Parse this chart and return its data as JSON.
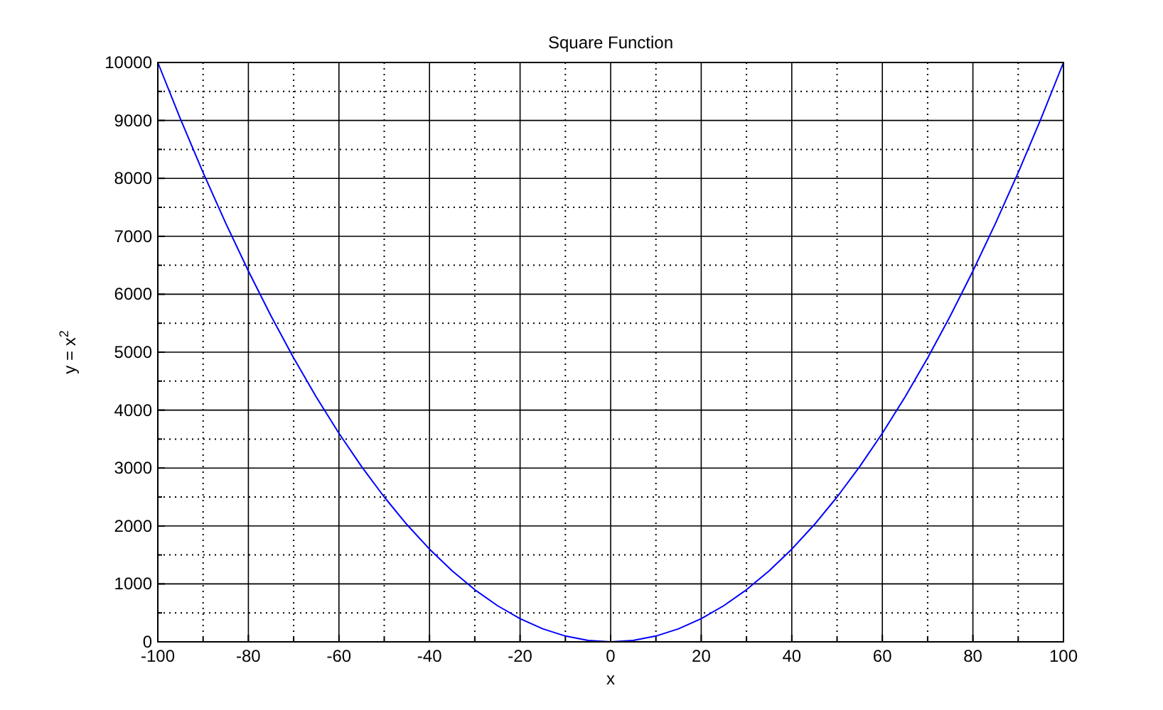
{
  "chart_data": {
    "type": "line",
    "title": "Square Function",
    "xlabel": "x",
    "ylabel": "y = x$^{2}$",
    "x": [
      -100,
      -95,
      -90,
      -85,
      -80,
      -75,
      -70,
      -65,
      -60,
      -55,
      -50,
      -45,
      -40,
      -35,
      -30,
      -25,
      -20,
      -15,
      -10,
      -5,
      0,
      5,
      10,
      15,
      20,
      25,
      30,
      35,
      40,
      45,
      50,
      55,
      60,
      65,
      70,
      75,
      80,
      85,
      90,
      95,
      100
    ],
    "series": [
      {
        "color": "#0000ff",
        "values": [
          10000,
          9025,
          8100,
          7225,
          6400,
          5625,
          4900,
          4225,
          3600,
          3025,
          2500,
          2025,
          1600,
          1225,
          900,
          625,
          400,
          225,
          100,
          25,
          0,
          25,
          100,
          225,
          400,
          625,
          900,
          1225,
          1600,
          2025,
          2500,
          3025,
          3600,
          4225,
          4900,
          5625,
          6400,
          7225,
          8100,
          9025,
          10000
        ]
      }
    ],
    "xlim": [
      -100,
      100
    ],
    "ylim": [
      0,
      10000
    ],
    "xticks": [
      -100,
      {
        "value": -90,
        "label": null
      },
      -80,
      {
        "value": -70,
        "label": null
      },
      -60,
      {
        "value": -50,
        "label": null
      },
      -40,
      {
        "value": -30,
        "label": null
      },
      -20,
      {
        "value": -10,
        "label": null
      },
      0,
      {
        "value": 10,
        "label": null
      },
      20,
      {
        "value": 30,
        "label": null
      },
      40,
      {
        "value": 50,
        "label": null
      },
      60,
      {
        "value": 70,
        "label": null
      },
      80,
      {
        "value": 90,
        "label": null
      },
      100
    ],
    "yticks": [
      0,
      {
        "value": 500,
        "label": null
      },
      1000,
      {
        "value": 1500,
        "label": null
      },
      2000,
      {
        "value": 2500,
        "label": null
      },
      3000,
      {
        "value": 3500,
        "label": null
      },
      4000,
      {
        "value": 4500,
        "label": null
      },
      5000,
      {
        "value": 5500,
        "label": null
      },
      6000,
      {
        "value": 6500,
        "label": null
      },
      7000,
      {
        "value": 7500,
        "label": null
      },
      8000,
      {
        "value": 8500,
        "label": null
      },
      9000,
      {
        "value": 9500,
        "label": null
      },
      10000
    ],
    "grid": true,
    "marker": "none",
    "line_style": "solid"
  }
}
